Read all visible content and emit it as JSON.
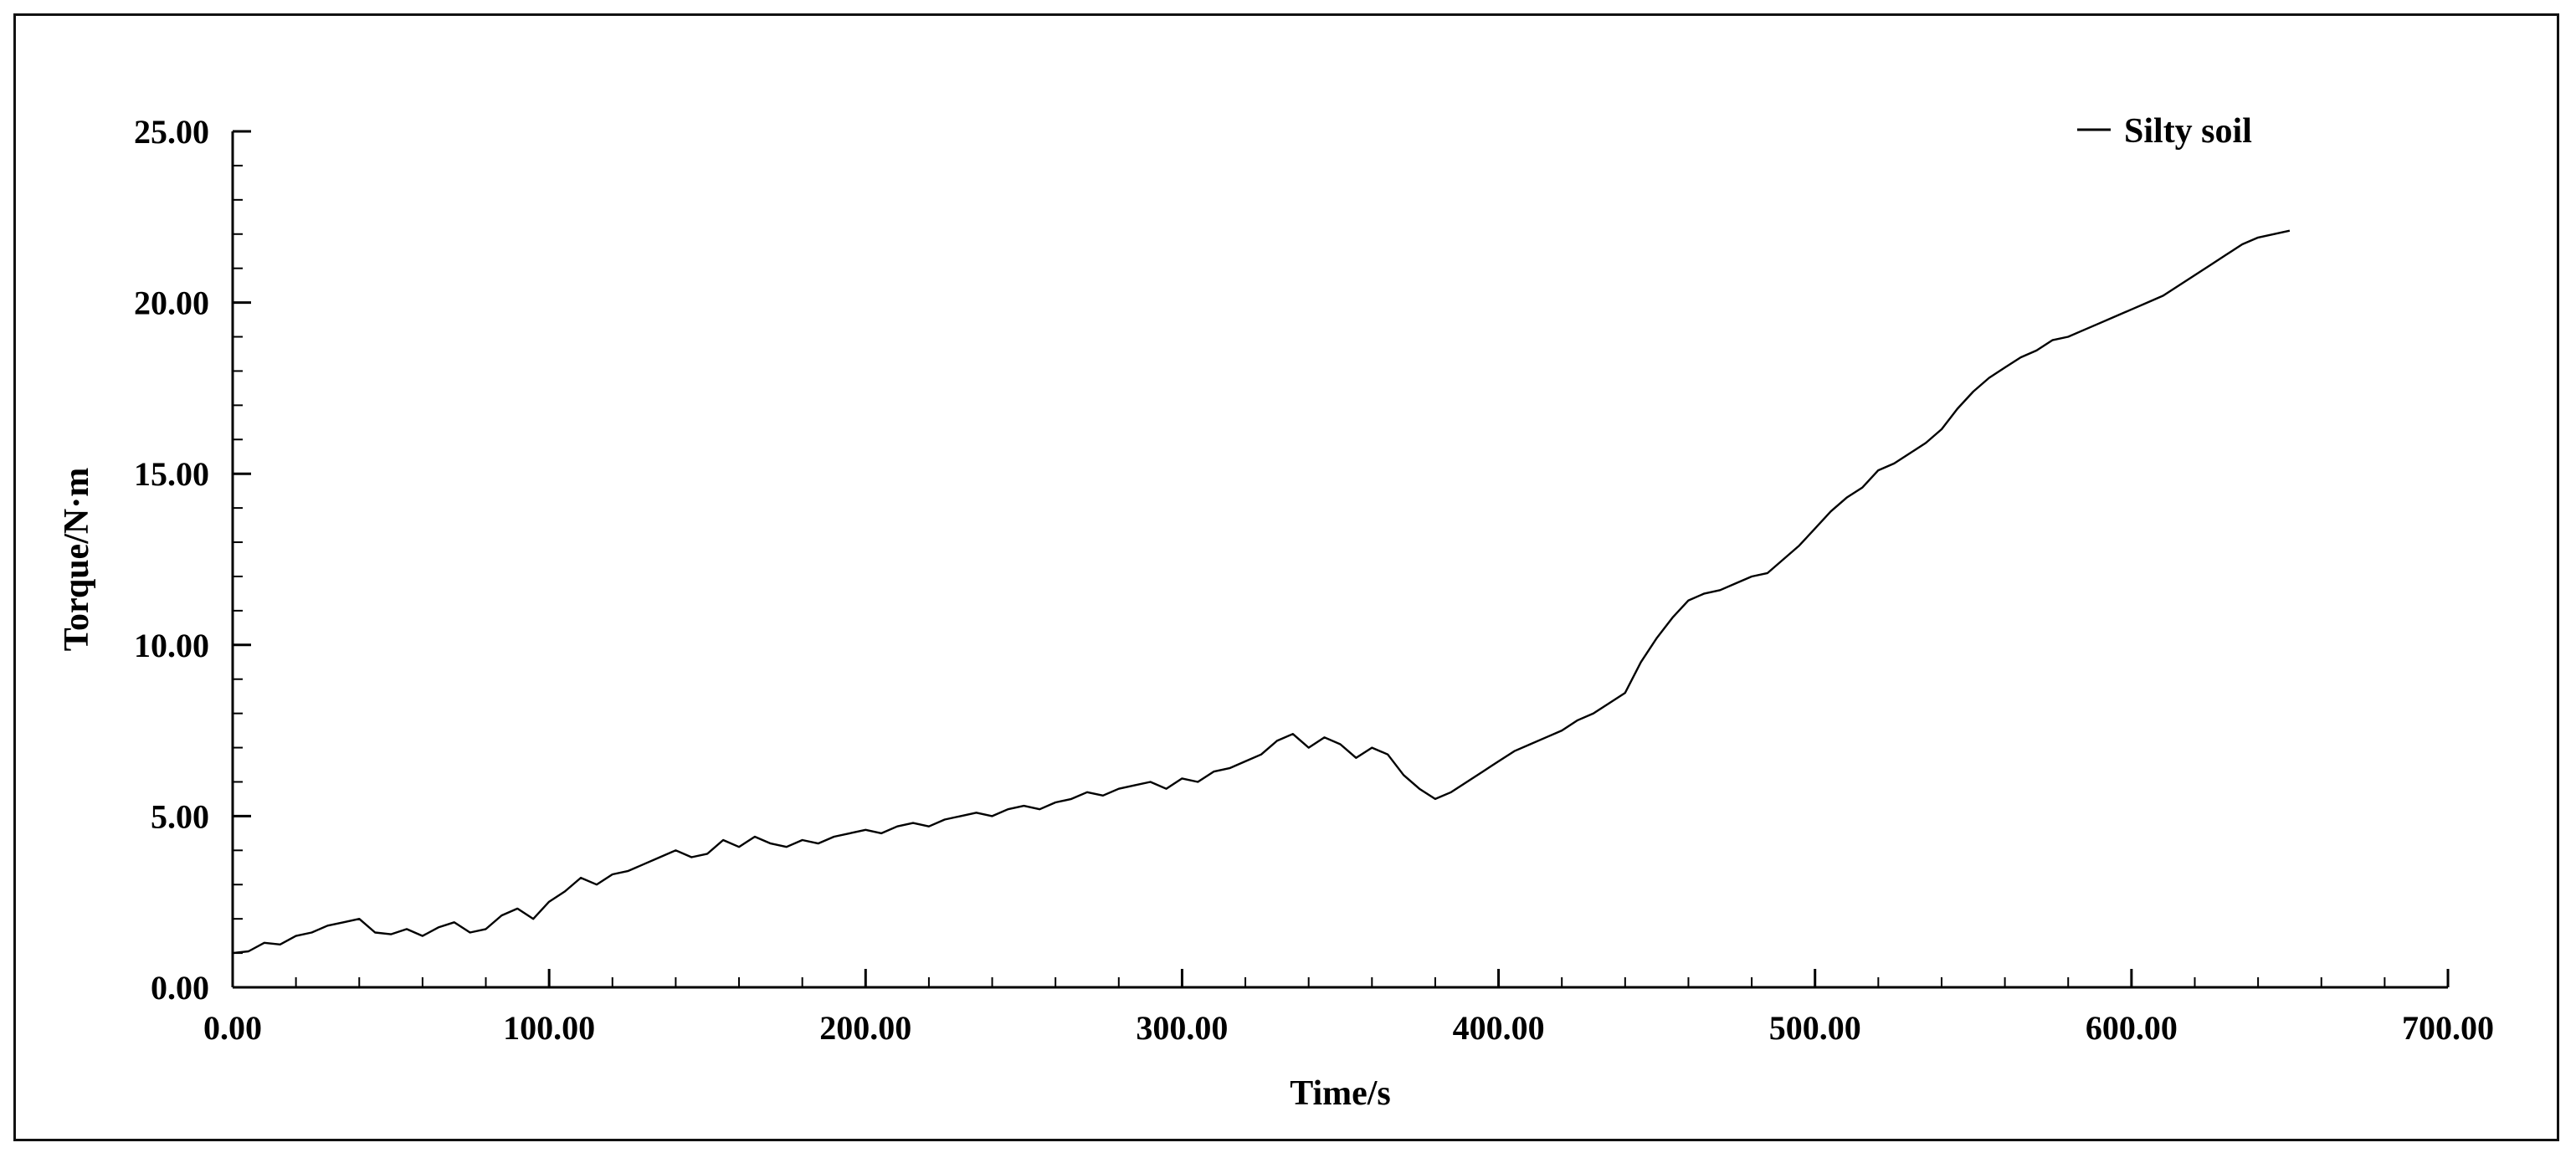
{
  "chart_data": {
    "type": "line",
    "title": "",
    "xlabel": "Time/s",
    "ylabel": "Torque/N·m",
    "xlim": [
      0,
      700
    ],
    "ylim": [
      0,
      25
    ],
    "x_ticks": [
      "0.00",
      "100.00",
      "200.00",
      "300.00",
      "400.00",
      "500.00",
      "600.00",
      "700.00"
    ],
    "y_ticks": [
      "0.00",
      "5.00",
      "10.00",
      "15.00",
      "20.00",
      "25.00"
    ],
    "x_minor_step": 20,
    "y_minor_step": 1,
    "grid": false,
    "legend_position": "top-right",
    "series": [
      {
        "name": "Silty soil",
        "color": "#000000",
        "x": [
          0,
          5,
          10,
          15,
          20,
          25,
          30,
          35,
          40,
          45,
          50,
          55,
          60,
          65,
          70,
          75,
          80,
          85,
          90,
          95,
          100,
          105,
          110,
          115,
          120,
          125,
          130,
          135,
          140,
          145,
          150,
          155,
          160,
          165,
          170,
          175,
          180,
          185,
          190,
          195,
          200,
          205,
          210,
          215,
          220,
          225,
          230,
          235,
          240,
          245,
          250,
          255,
          260,
          265,
          270,
          275,
          280,
          285,
          290,
          295,
          300,
          305,
          310,
          315,
          320,
          325,
          330,
          335,
          340,
          345,
          350,
          355,
          360,
          365,
          370,
          375,
          380,
          385,
          390,
          395,
          400,
          405,
          410,
          415,
          420,
          425,
          430,
          435,
          440,
          445,
          450,
          455,
          460,
          465,
          470,
          475,
          480,
          485,
          490,
          495,
          500,
          505,
          510,
          515,
          520,
          525,
          530,
          535,
          540,
          545,
          550,
          555,
          560,
          565,
          570,
          575,
          580,
          585,
          590,
          595,
          600,
          605,
          610,
          615,
          620,
          625,
          630,
          635,
          640,
          645,
          650
        ],
        "y": [
          1.0,
          1.05,
          1.3,
          1.25,
          1.5,
          1.6,
          1.8,
          1.9,
          2.0,
          1.6,
          1.55,
          1.7,
          1.5,
          1.75,
          1.9,
          1.6,
          1.7,
          2.1,
          2.3,
          2.0,
          2.5,
          2.8,
          3.2,
          3.0,
          3.3,
          3.4,
          3.6,
          3.8,
          4.0,
          3.8,
          3.9,
          4.3,
          4.1,
          4.4,
          4.2,
          4.1,
          4.3,
          4.2,
          4.4,
          4.5,
          4.6,
          4.5,
          4.7,
          4.8,
          4.7,
          4.9,
          5.0,
          5.1,
          5.0,
          5.2,
          5.3,
          5.2,
          5.4,
          5.5,
          5.7,
          5.6,
          5.8,
          5.9,
          6.0,
          5.8,
          6.1,
          6.0,
          6.3,
          6.4,
          6.6,
          6.8,
          7.2,
          7.4,
          7.0,
          7.3,
          7.1,
          6.7,
          7.0,
          6.8,
          6.2,
          5.8,
          5.5,
          5.7,
          6.0,
          6.3,
          6.6,
          6.9,
          7.1,
          7.3,
          7.5,
          7.8,
          8.0,
          8.3,
          8.6,
          9.5,
          10.2,
          10.8,
          11.3,
          11.5,
          11.6,
          11.8,
          12.0,
          12.1,
          12.5,
          12.9,
          13.4,
          13.9,
          14.3,
          14.6,
          15.1,
          15.3,
          15.6,
          15.9,
          16.3,
          16.9,
          17.4,
          17.8,
          18.1,
          18.4,
          18.6,
          18.9,
          19.0,
          19.2,
          19.4,
          19.6,
          19.8,
          20.0,
          20.2,
          20.5,
          20.8,
          21.1,
          21.4,
          21.7,
          21.9,
          22.0,
          22.1
        ]
      }
    ]
  }
}
